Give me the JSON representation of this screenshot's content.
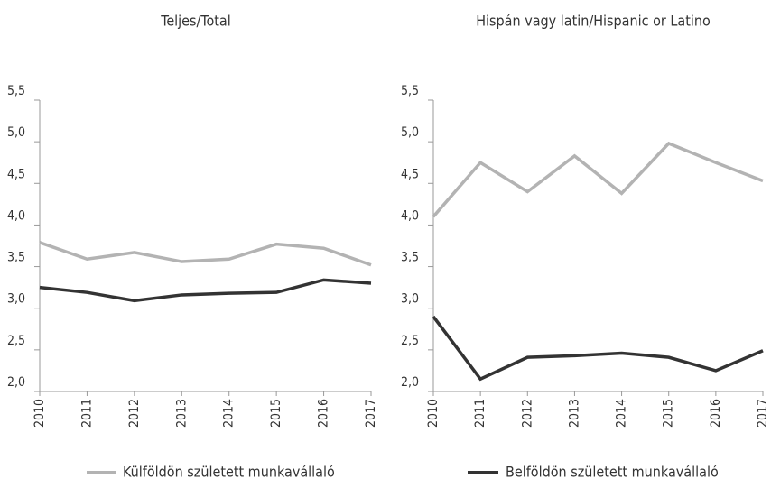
{
  "chart_data": [
    {
      "type": "line",
      "title": "Teljes/Total",
      "categories": [
        "2010",
        "2011",
        "2012",
        "2013",
        "2014",
        "2015",
        "2016",
        "2017"
      ],
      "series": [
        {
          "name": "Külföldön született munkavállaló",
          "color": "#b3b3b3",
          "values": [
            3.79,
            3.59,
            3.67,
            3.56,
            3.59,
            3.77,
            3.72,
            3.52
          ]
        },
        {
          "name": "Belföldön született munkavállaló",
          "color": "#333333",
          "values": [
            3.25,
            3.19,
            3.09,
            3.16,
            3.18,
            3.19,
            3.34,
            3.3
          ]
        }
      ],
      "ylim": [
        2.0,
        5.5
      ],
      "yticks": [
        {
          "value": 2.0,
          "label": "2,0"
        },
        {
          "value": 2.5,
          "label": "2,5"
        },
        {
          "value": 3.0,
          "label": "3,0"
        },
        {
          "value": 3.5,
          "label": "3,5"
        },
        {
          "value": 4.0,
          "label": "4,0"
        },
        {
          "value": 4.5,
          "label": "4,5"
        },
        {
          "value": 5.0,
          "label": "5,0"
        },
        {
          "value": 5.5,
          "label": "5,5"
        }
      ]
    },
    {
      "type": "line",
      "title": "Hispán vagy latin/Hispanic or Latino",
      "categories": [
        "2010",
        "2011",
        "2012",
        "2013",
        "2014",
        "2015",
        "2016",
        "2017"
      ],
      "series": [
        {
          "name": "Külföldön született munkavállaló",
          "color": "#b3b3b3",
          "values": [
            4.1,
            4.75,
            4.4,
            4.83,
            4.38,
            4.98,
            4.75,
            4.53
          ]
        },
        {
          "name": "Belföldön született munkavállaló",
          "color": "#333333",
          "values": [
            2.9,
            2.15,
            2.41,
            2.43,
            2.46,
            2.41,
            2.25,
            2.49
          ]
        }
      ],
      "ylim": [
        2.0,
        5.5
      ],
      "yticks": [
        {
          "value": 2.0,
          "label": "2,0"
        },
        {
          "value": 2.5,
          "label": "2,5"
        },
        {
          "value": 3.0,
          "label": "3,0"
        },
        {
          "value": 3.5,
          "label": "3,5"
        },
        {
          "value": 4.0,
          "label": "4,0"
        },
        {
          "value": 4.5,
          "label": "4,5"
        },
        {
          "value": 5.0,
          "label": "5,0"
        },
        {
          "value": 5.5,
          "label": "5,5"
        }
      ]
    }
  ]
}
